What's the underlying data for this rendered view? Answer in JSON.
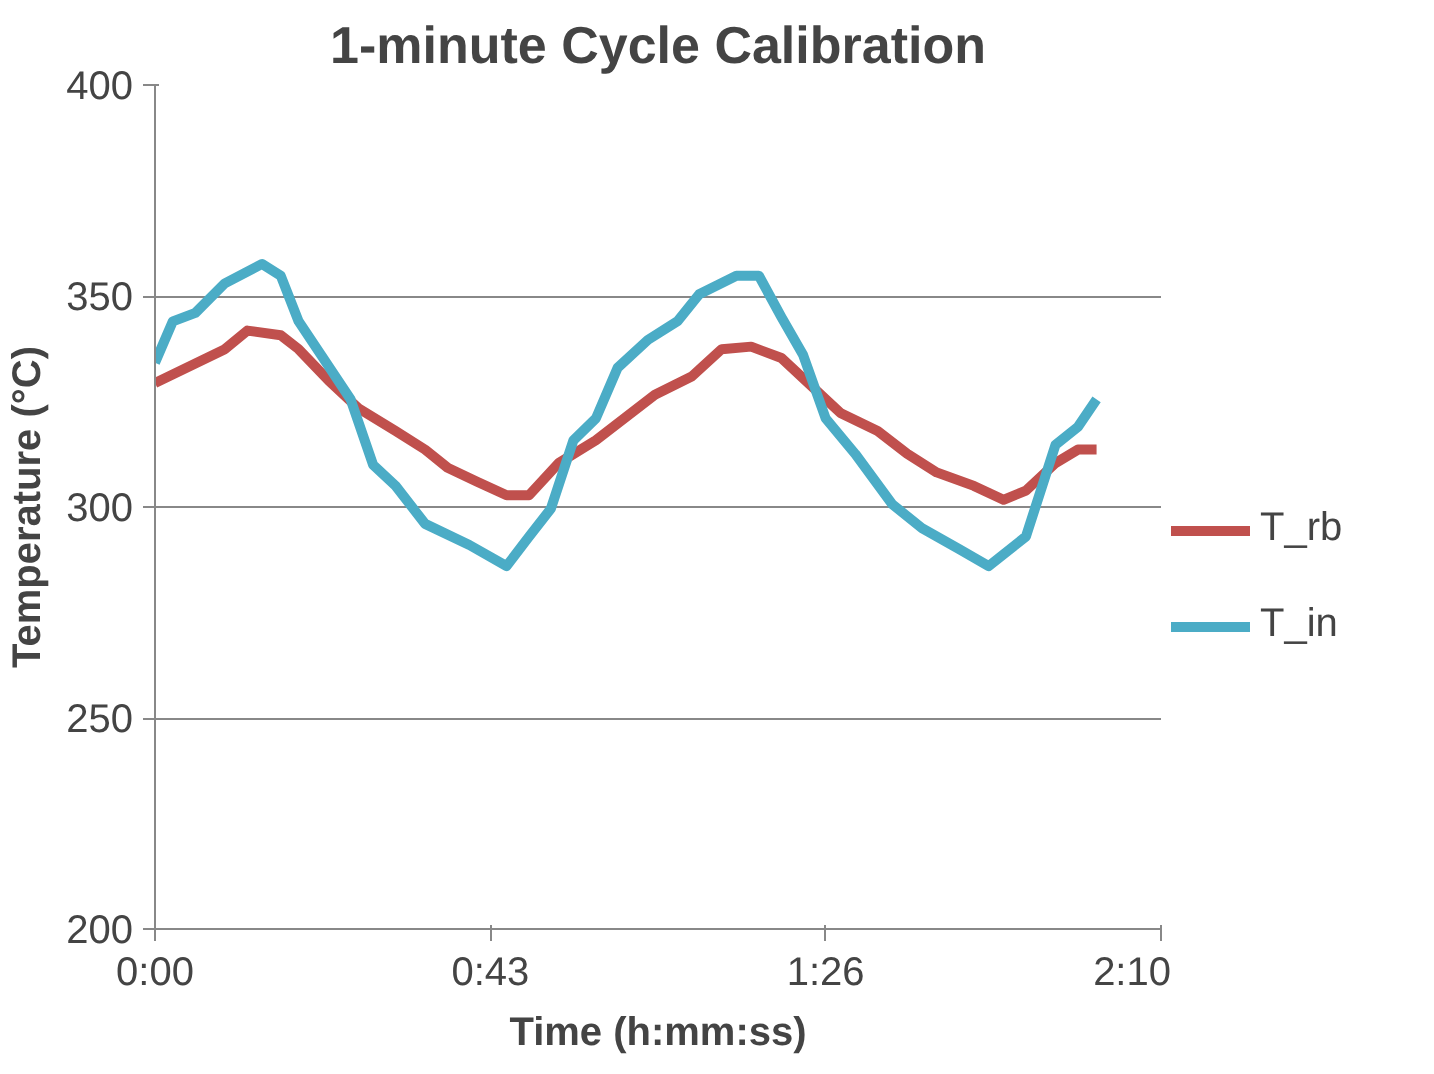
{
  "chart_data": {
    "type": "line",
    "title": "1-minute Cycle Calibration",
    "xlabel": "Time (h:mm:ss)",
    "ylabel": "Temperature (°C)",
    "xlim": [
      0,
      129.6
    ],
    "xticks": [
      {
        "value": 0,
        "label": "0:00"
      },
      {
        "value": 43.2,
        "label": "0:43"
      },
      {
        "value": 86.4,
        "label": "1:26"
      },
      {
        "value": 129.6,
        "label": "2:10"
      }
    ],
    "ylim": [
      200,
      400
    ],
    "yticks": [
      200,
      250,
      300,
      350,
      400
    ],
    "grid": "y",
    "legend": "right",
    "marker": "none",
    "line_style": "solid",
    "series": [
      {
        "name": "T_rb",
        "color": "#c0504d",
        "x": [
          0,
          5.2,
          9.0,
          11.9,
          16.2,
          18.5,
          22.4,
          26.2,
          31.0,
          34.8,
          37.7,
          41.5,
          45.3,
          48.2,
          52.0,
          56.8,
          60.6,
          64.4,
          69.2,
          73.0,
          76.8,
          80.7,
          84.5,
          88.3,
          93.1,
          96.9,
          100.7,
          105.5,
          109.3,
          112.2,
          116.0,
          118.9,
          121.3
        ],
        "values": [
          329.4,
          334,
          337.4,
          341.8,
          340.7,
          337.4,
          329.9,
          323.4,
          318,
          313.6,
          309.3,
          306,
          302.8,
          302.8,
          310.4,
          315.8,
          321.2,
          326.6,
          331,
          337.4,
          338,
          335.3,
          328.8,
          322.3,
          318,
          312.6,
          308.2,
          305,
          301.7,
          303.9,
          310.4,
          313.6,
          313.6
        ]
      },
      {
        "name": "T_in",
        "color": "#4bacc6",
        "x": [
          0,
          2.3,
          5.2,
          9.0,
          13.8,
          16.2,
          18.5,
          21.4,
          25.2,
          28.1,
          31.0,
          34.8,
          40.5,
          45.3,
          48.2,
          51.0,
          53.9,
          56.8,
          59.6,
          63.5,
          67.3,
          70.1,
          74.9,
          77.8,
          80.7,
          83.5,
          86.4,
          90.2,
          95.0,
          98.8,
          103.6,
          107.4,
          112.2,
          116.0,
          118.9,
          121.3
        ],
        "values": [
          334.2,
          344,
          346,
          353,
          357.6,
          354.8,
          344,
          336,
          325.5,
          310,
          305,
          296,
          291,
          286,
          293,
          299.6,
          315.8,
          321,
          333,
          339.6,
          344,
          350.4,
          354.8,
          354.8,
          345,
          336,
          321,
          312.6,
          300.6,
          295,
          290,
          286,
          293,
          314.7,
          319,
          325.5
        ]
      }
    ]
  }
}
